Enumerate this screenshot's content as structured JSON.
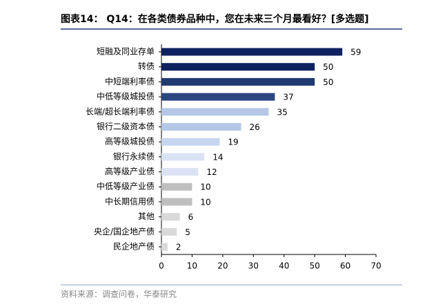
{
  "chart_data": {
    "type": "bar",
    "orientation": "horizontal",
    "title": "图表14： Q14：在各类债券品种中，您在未来三个月最看好？[多选题]",
    "source": "资料来源：调查问卷，华泰研究",
    "categories": [
      "短融及同业存单",
      "转债",
      "中短端利率债",
      "中低等级城投债",
      "长端/超长端利率债",
      "银行二级资本债",
      "高等级城投债",
      "银行永续债",
      "高等级产业债",
      "中低等级产业债",
      "中长期信用债",
      "其他",
      "央企/国企地产债",
      "民企地产债"
    ],
    "values": [
      59,
      50,
      50,
      37,
      35,
      26,
      19,
      14,
      12,
      10,
      10,
      6,
      5,
      2
    ],
    "colors": [
      "#0f2260",
      "#0f2260",
      "#213a72",
      "#2b4680",
      "#b4c7e7",
      "#b4c7e7",
      "#c6d6ef",
      "#dae3f3",
      "#dae3f3",
      "#bfbfbf",
      "#bfbfbf",
      "#d9d9d9",
      "#d9d9d9",
      "#d9d9d9"
    ],
    "xlim": [
      0,
      70
    ],
    "xticks": [
      0,
      10,
      20,
      30,
      40,
      50,
      60,
      70
    ]
  }
}
